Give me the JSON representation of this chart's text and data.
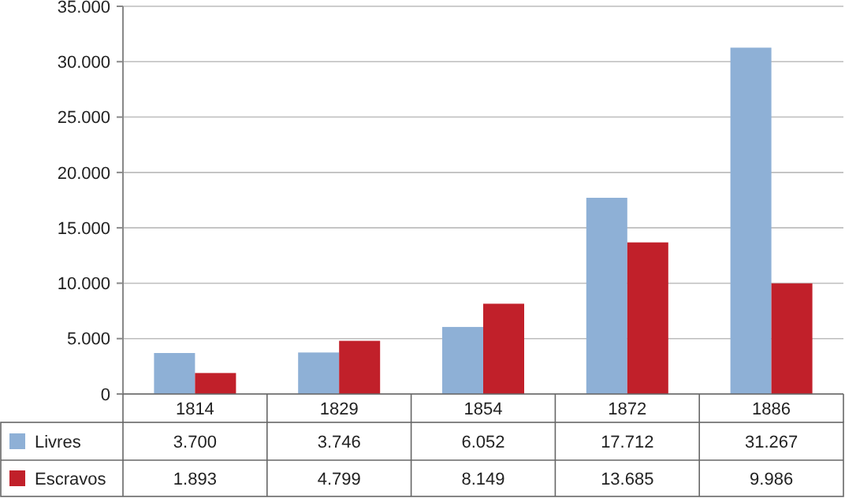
{
  "chart_data": {
    "type": "bar",
    "categories": [
      "1814",
      "1829",
      "1854",
      "1872",
      "1886"
    ],
    "series": [
      {
        "name": "Livres",
        "color": "#8eb0d6",
        "values": [
          3700,
          3746,
          6052,
          17712,
          31267
        ],
        "value_labels": [
          "3.700",
          "3.746",
          "6.052",
          "17.712",
          "31.267"
        ]
      },
      {
        "name": "Escravos",
        "color": "#c1202a",
        "values": [
          1893,
          4799,
          8149,
          13685,
          9986
        ],
        "value_labels": [
          "1.893",
          "4.799",
          "8.149",
          "13.685",
          "9.986"
        ]
      }
    ],
    "ylim": [
      0,
      35000
    ],
    "yticks": [
      {
        "value": 0,
        "label": "0"
      },
      {
        "value": 5000,
        "label": "5.000"
      },
      {
        "value": 10000,
        "label": "10.000"
      },
      {
        "value": 15000,
        "label": "15.000"
      },
      {
        "value": 20000,
        "label": "20.000"
      },
      {
        "value": 25000,
        "label": "25.000"
      },
      {
        "value": 30000,
        "label": "30.000"
      },
      {
        "value": 35000,
        "label": "35.000"
      }
    ],
    "grid": "y",
    "legend": "bottom"
  }
}
